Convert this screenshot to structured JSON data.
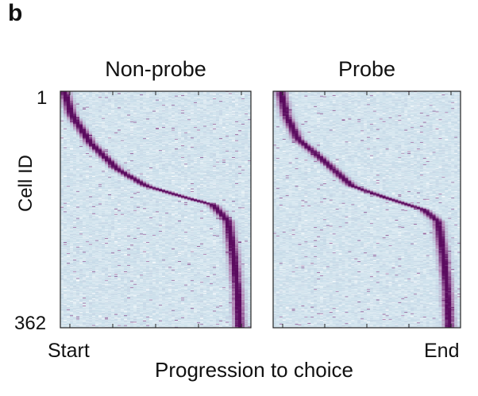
{
  "figure": {
    "panel_letter": "b"
  },
  "chart_data": {
    "type": "heatmap",
    "ylabel": "Cell ID",
    "xlabel": "Progression to choice",
    "y_ticks": [
      "1",
      "362"
    ],
    "x_ticks": [
      "Start",
      "End"
    ],
    "n_cells": 362,
    "n_bins": 60,
    "colormap": [
      "#ffffff",
      "#c9deea",
      "#b58ab8",
      "#5a0a5e"
    ],
    "panels": [
      {
        "title": "Non-probe",
        "peak_profile": [
          [
            0,
            0.02
          ],
          [
            0.1,
            0.06
          ],
          [
            0.22,
            0.16
          ],
          [
            0.33,
            0.3
          ],
          [
            0.4,
            0.45
          ],
          [
            0.45,
            0.66
          ],
          [
            0.48,
            0.8
          ],
          [
            0.55,
            0.88
          ],
          [
            0.7,
            0.91
          ],
          [
            0.85,
            0.93
          ],
          [
            1.0,
            0.94
          ]
        ]
      },
      {
        "title": "Probe",
        "peak_profile": [
          [
            0,
            0.04
          ],
          [
            0.1,
            0.07
          ],
          [
            0.2,
            0.13
          ],
          [
            0.3,
            0.28
          ],
          [
            0.4,
            0.42
          ],
          [
            0.45,
            0.6
          ],
          [
            0.5,
            0.8
          ],
          [
            0.55,
            0.88
          ],
          [
            0.7,
            0.91
          ],
          [
            0.85,
            0.93
          ],
          [
            1.0,
            0.94
          ]
        ]
      }
    ]
  }
}
